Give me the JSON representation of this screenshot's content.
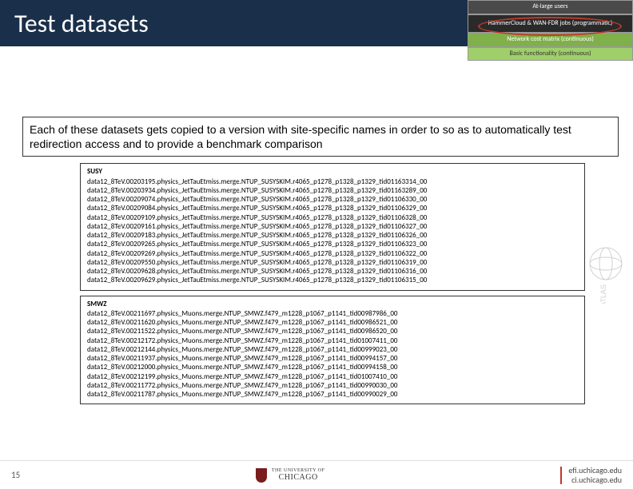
{
  "title": "Test datasets",
  "layers": {
    "l1": "At-large users",
    "l2": "HammerCloud & WAN-FDR jobs (programmatic)",
    "l3": "Network cost matrix (continuous)",
    "l4": "Basic functionality (continuous)"
  },
  "description": "Each of these datasets gets copied to a version with site-specific names in order to so as to automatically test redirection access and to provide a benchmark comparison",
  "box1": {
    "heading": "SUSY",
    "lines": [
      "data12_8TeV.00203195.physics_JetTauEtmiss.merge.NTUP_SUSYSKIM.r4065_p1278_p1328_p1329_tid01163314_00",
      "data12_8TeV.00203934.physics_JetTauEtmiss.merge.NTUP_SUSYSKIM.r4065_p1278_p1328_p1329_tid01163289_00",
      "data12_8TeV.00209074.physics_JetTauEtmiss.merge.NTUP_SUSYSKIM.r4065_p1278_p1328_p1329_tid01106330_00",
      "data12_8TeV.00209084.physics_JetTauEtmiss.merge.NTUP_SUSYSKIM.r4065_p1278_p1328_p1329_tid01106329_00",
      "data12_8TeV.00209109.physics_JetTauEtmiss.merge.NTUP_SUSYSKIM.r4065_p1278_p1328_p1329_tid01106328_00",
      "data12_8TeV.00209161.physics_JetTauEtmiss.merge.NTUP_SUSYSKIM.r4065_p1278_p1328_p1329_tid01106327_00",
      "data12_8TeV.00209183.physics_JetTauEtmiss.merge.NTUP_SUSYSKIM.r4065_p1278_p1328_p1329_tid01106326_00",
      "data12_8TeV.00209265.physics_JetTauEtmiss.merge.NTUP_SUSYSKIM.r4065_p1278_p1328_p1329_tid01106323_00",
      "data12_8TeV.00209269.physics_JetTauEtmiss.merge.NTUP_SUSYSKIM.r4065_p1278_p1328_p1329_tid01106322_00",
      "data12_8TeV.00209550.physics_JetTauEtmiss.merge.NTUP_SUSYSKIM.r4065_p1278_p1328_p1329_tid01106319_00",
      "data12_8TeV.00209628.physics_JetTauEtmiss.merge.NTUP_SUSYSKIM.r4065_p1278_p1328_p1329_tid01106316_00",
      "data12_8TeV.00209629.physics_JetTauEtmiss.merge.NTUP_SUSYSKIM.r4065_p1278_p1328_p1329_tid01106315_00"
    ]
  },
  "box2": {
    "heading": "SMWZ",
    "lines": [
      "data12_8TeV.00211697.physics_Muons.merge.NTUP_SMWZ.f479_m1228_p1067_p1141_tid00987986_00",
      "data12_8TeV.00211620.physics_Muons.merge.NTUP_SMWZ.f479_m1228_p1067_p1141_tid00986521_00",
      "data12_8TeV.00211522.physics_Muons.merge.NTUP_SMWZ.f479_m1228_p1067_p1141_tid00986520_00",
      "data12_8TeV.00212172.physics_Muons.merge.NTUP_SMWZ.f479_m1228_p1067_p1141_tid01007411_00",
      "data12_8TeV.00212144.physics_Muons.merge.NTUP_SMWZ.f479_m1228_p1067_p1141_tid00999023_00",
      "data12_8TeV.00211937.physics_Muons.merge.NTUP_SMWZ.f479_m1228_p1067_p1141_tid00994157_00",
      "data12_8TeV.00212000.physics_Muons.merge.NTUP_SMWZ.f479_m1228_p1067_p1141_tid00994158_00",
      "data12_8TeV.00212199.physics_Muons.merge.NTUP_SMWZ.f479_m1228_p1067_p1141_tid01007410_00",
      "data12_8TeV.00211772.physics_Muons.merge.NTUP_SMWZ.f479_m1228_p1067_p1141_tid00990030_00",
      "data12_8TeV.00211787.physics_Muons.merge.NTUP_SMWZ.f479_m1228_p1067_p1141_tid00990029_00"
    ]
  },
  "footer": {
    "page": "15",
    "uni_tiny": "THE UNIVERSITY OF",
    "uni": "CHICAGO",
    "r1": "efi.uchicago.edu",
    "r2": "ci.uchicago.edu"
  }
}
